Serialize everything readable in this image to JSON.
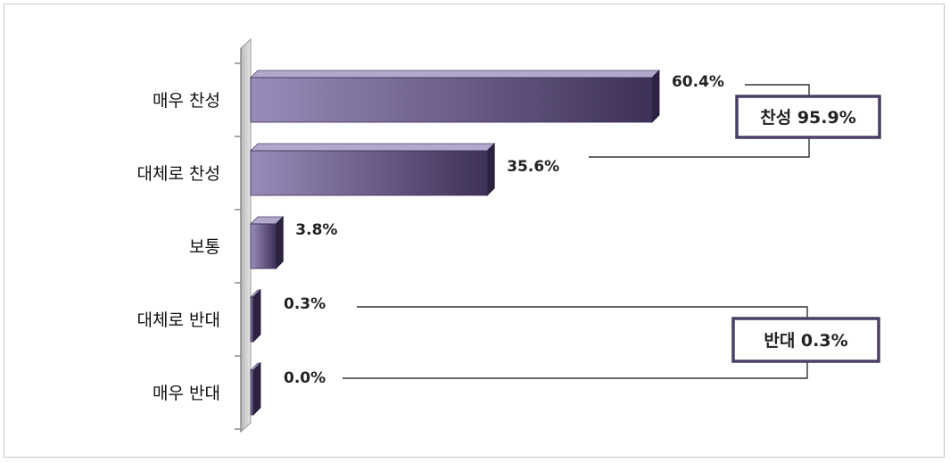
{
  "chart_data": {
    "type": "bar",
    "orientation": "horizontal",
    "categories": [
      "매우 찬성",
      "대체로 찬성",
      "보통",
      "대체로 반대",
      "매우 반대"
    ],
    "values": [
      60.4,
      35.6,
      3.8,
      0.3,
      0.0
    ],
    "value_labels": [
      "60.4%",
      "35.6%",
      "3.8%",
      "0.3%",
      "0.0%"
    ],
    "xlim": [
      0,
      100
    ],
    "grid": false,
    "legend": "none",
    "bar_color": "#6a5a8c",
    "annotations": [
      {
        "text": "찬성 95.9%",
        "groups": [
          0,
          1
        ]
      },
      {
        "text": "반대 0.3%",
        "groups": [
          3,
          4
        ]
      }
    ]
  }
}
